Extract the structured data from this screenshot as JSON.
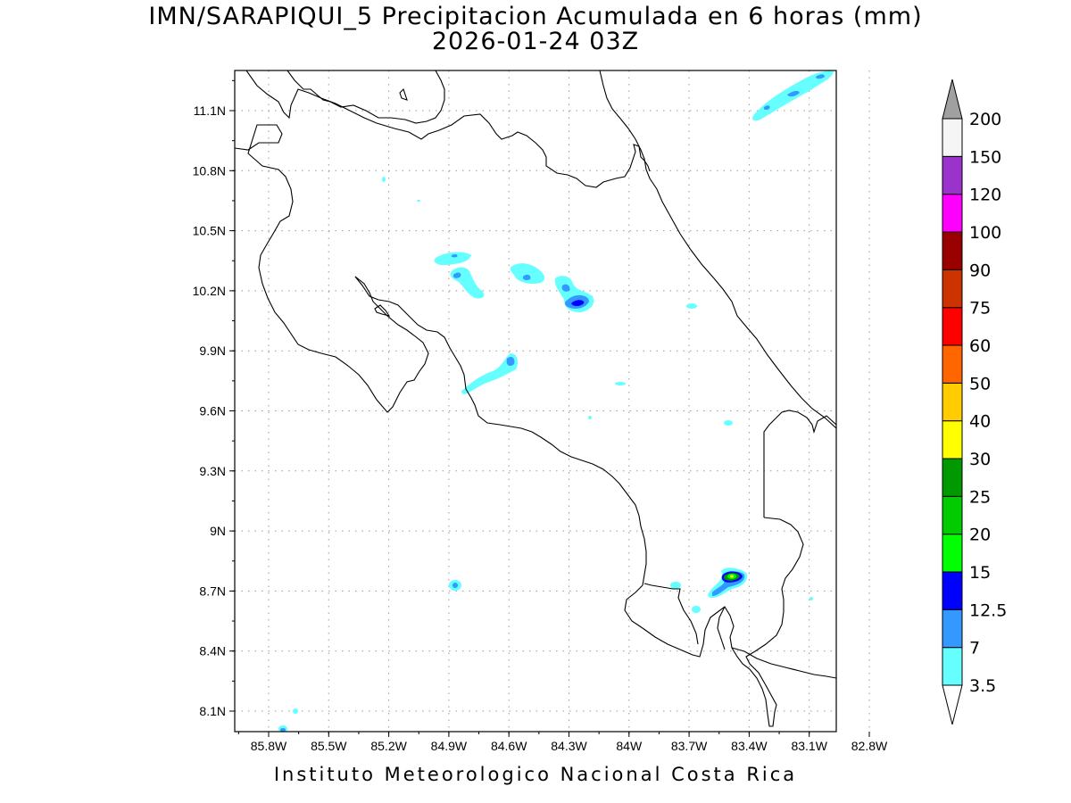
{
  "map": {
    "title_line1": "IMN/SARAPIQUI_5 Precipitacion Acumulada en 6 horas (mm)",
    "title_line2": "2026-01-24 03Z",
    "footer": "Instituto Meteorologico Nacional Costa Rica",
    "lon_labels": [
      "85.8W",
      "85.5W",
      "85.2W",
      "84.9W",
      "84.6W",
      "84.3W",
      "84W",
      "83.7W",
      "83.4W",
      "83.1W",
      "82.8W"
    ],
    "lat_labels": [
      "11.1N",
      "10.8N",
      "10.5N",
      "10.2N",
      "9.9N",
      "9.6N",
      "9.3N",
      "9N",
      "8.7N",
      "8.4N",
      "8.1N"
    ],
    "gridlines": "dotted"
  },
  "colorbar": {
    "levels": [
      "3.5",
      "7",
      "12.5",
      "15",
      "20",
      "25",
      "30",
      "40",
      "50",
      "60",
      "75",
      "90",
      "100",
      "120",
      "150",
      "200"
    ],
    "colors": [
      "#66ffff",
      "#3399ff",
      "#0000ff",
      "#00ff00",
      "#00cc00",
      "#009900",
      "#ffff00",
      "#ffcc00",
      "#ff6600",
      "#ff0000",
      "#cc3300",
      "#990000",
      "#ff00ff",
      "#9933cc",
      "#f5f5f5"
    ],
    "over_color": "#a0a0a0",
    "under_color": "#ffffff"
  },
  "colors": {
    "coastline": "#000000",
    "light_cyan": "#66ffff",
    "mid_blue": "#3399ff",
    "dark_blue": "#0000ff",
    "green": "#00ff00",
    "dark_green": "#009900"
  }
}
